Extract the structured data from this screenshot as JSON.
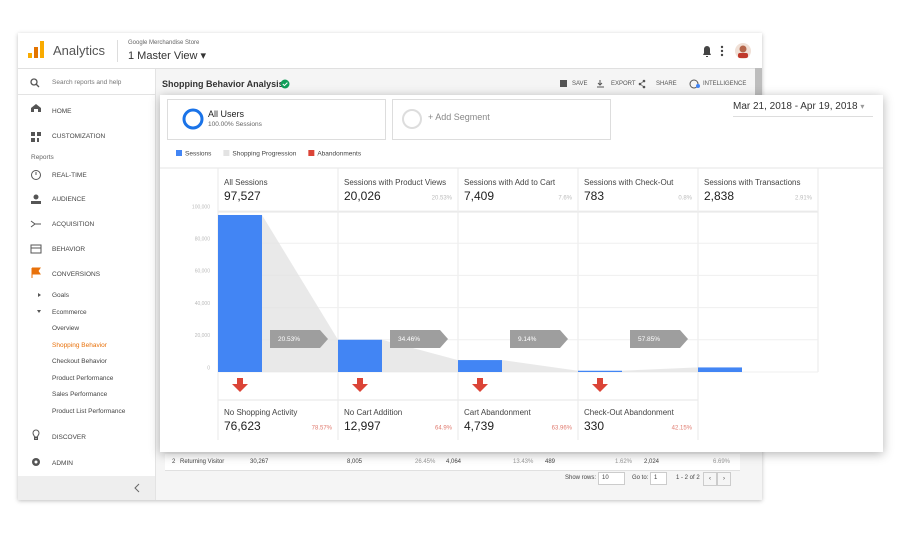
{
  "app": {
    "name": "Analytics",
    "account": "Google Merchandise Store",
    "view": "1 Master View"
  },
  "sidebar": {
    "search": "Search reports and help",
    "reports_heading": "Reports",
    "items": [
      "HOME",
      "CUSTOMIZATION",
      "REAL-TIME",
      "AUDIENCE",
      "ACQUISITION",
      "BEHAVIOR",
      "CONVERSIONS",
      "Goals",
      "Ecommerce",
      "Overview",
      "Shopping Behavior",
      "Checkout Behavior",
      "Product Performance",
      "Sales Performance",
      "Product List Performance",
      "DISCOVER",
      "ADMIN"
    ]
  },
  "report": {
    "title": "Shopping Behavior Analysis",
    "actions": [
      "SAVE",
      "EXPORT",
      "SHARE",
      "INTELLIGENCE"
    ]
  },
  "segments": {
    "active": "All Users",
    "active_share": "100.00% Sessions",
    "add": "+ Add Segment",
    "date_range": "Mar 21, 2018 - Apr 19, 2018"
  },
  "funnel": {
    "legend": [
      {
        "name": "Sessions",
        "color": "#4285f4"
      },
      {
        "name": "Shopping Progression",
        "color": "#e3e3e3"
      },
      {
        "name": "Abandonments",
        "color": "#db4437"
      }
    ],
    "ylim": [
      0,
      100000
    ],
    "yticks": [
      0,
      {
        "value": 20000,
        "label": "20,000"
      },
      {
        "value": 40000,
        "label": "40,000"
      },
      {
        "value": 60000,
        "label": "60,000"
      },
      {
        "value": 80000,
        "label": "80,000"
      },
      {
        "value": 100000,
        "label": "100,000"
      }
    ],
    "stages": [
      {
        "name": "All Sessions",
        "value": 97527,
        "label": "97,527"
      },
      {
        "name": "Sessions with Product Views",
        "value": 20026,
        "label": "20,026",
        "share": "20.53%"
      },
      {
        "name": "Sessions with Add to Cart",
        "value": 7409,
        "label": "7,409",
        "share": "7.6%"
      },
      {
        "name": "Sessions with Check-Out",
        "value": 783,
        "label": "783",
        "share": "0.8%"
      },
      {
        "name": "Sessions with Transactions",
        "value": 2838,
        "label": "2,838",
        "share": "2.91%"
      }
    ],
    "progression": [
      "20.53%",
      "34.46%",
      "9.14%",
      "57.85%"
    ],
    "abandonments": [
      {
        "name": "No Shopping Activity",
        "value": "76,623",
        "share": "78.57%"
      },
      {
        "name": "No Cart Addition",
        "value": "12,997",
        "share": "64.9%"
      },
      {
        "name": "Cart Abandonment",
        "value": "4,739",
        "share": "63.96%"
      },
      {
        "name": "Check-Out Abandonment",
        "value": "330",
        "share": "42.15%"
      }
    ]
  },
  "table": {
    "row": [
      "2",
      "Returning Visitor",
      "30,267",
      "8,005",
      "26.45%",
      "4,064",
      "13.43%",
      "489",
      "1.62%",
      "2,024",
      "6.69%"
    ],
    "footer": {
      "show_rows": "Show rows:",
      "rows": "10",
      "go_to": "Go to:",
      "page": "1",
      "range": "1 - 2 of 2"
    }
  }
}
